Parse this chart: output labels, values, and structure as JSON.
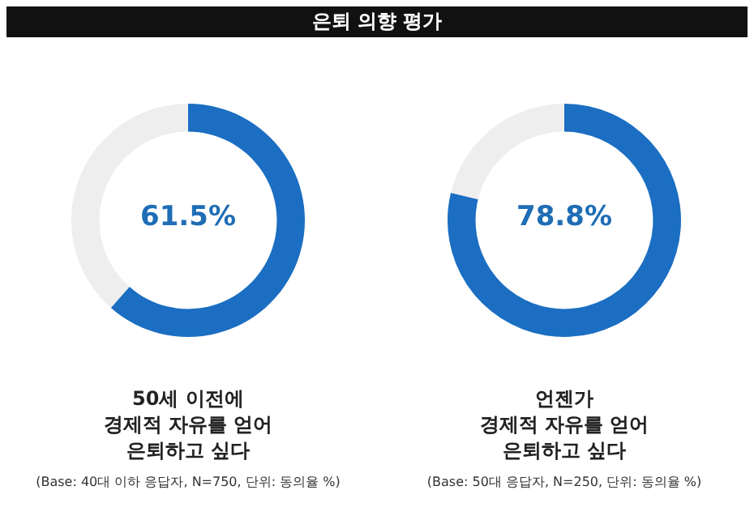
{
  "chart_data": [
    {
      "type": "donut",
      "title": "은퇴 의향 평가",
      "categories": [
        null,
        null
      ],
      "values": [
        61.5,
        38.5
      ],
      "colors": [
        "#1b6ec2",
        "#eeeeee"
      ],
      "value_labels": [
        "61.5%",
        null
      ],
      "annotations": [
        "50세 이전에\n경제적 자유를 얻어\n은퇴하고 싶다",
        "(Base: 40대 이하 응답자, N=750, 단위: 동의율 %)"
      ]
    },
    {
      "type": "donut",
      "categories": [
        null,
        null
      ],
      "values": [
        78.8,
        21.2
      ],
      "colors": [
        "#1b6ec2",
        "#eeeeee"
      ],
      "value_labels": [
        "78.8%",
        null
      ],
      "annotations": [
        "언젠가\n경제적 자유를 얻어\n은퇴하고 싶다",
        "(Base: 50대 응답자, N=250, 단위: 동의율 %)"
      ]
    }
  ]
}
